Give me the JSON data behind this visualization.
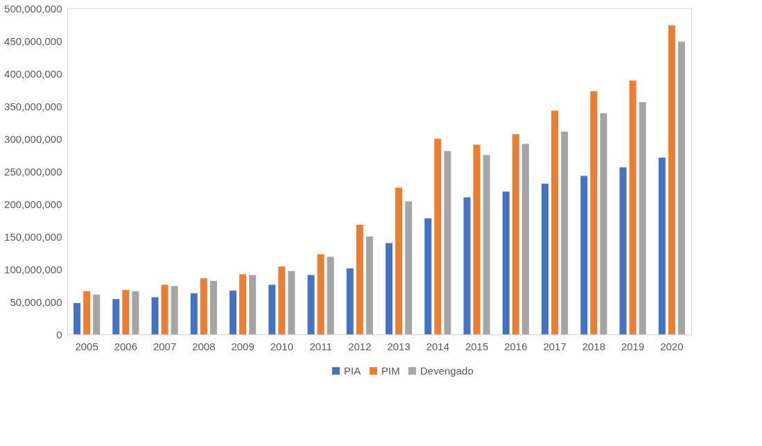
{
  "chart_data": {
    "type": "bar",
    "categories": [
      "2005",
      "2006",
      "2007",
      "2008",
      "2009",
      "2010",
      "2011",
      "2012",
      "2013",
      "2014",
      "2015",
      "2016",
      "2017",
      "2018",
      "2019",
      "2020"
    ],
    "series": [
      {
        "name": "PIA",
        "color": "#4472c4",
        "values": [
          48000000,
          54000000,
          57000000,
          63000000,
          67000000,
          76000000,
          91000000,
          101000000,
          140000000,
          178000000,
          210000000,
          219000000,
          231000000,
          243000000,
          256000000,
          271000000
        ]
      },
      {
        "name": "PIM",
        "color": "#ed7d31",
        "values": [
          66000000,
          68000000,
          76000000,
          86000000,
          92000000,
          104000000,
          123000000,
          168000000,
          225000000,
          300000000,
          291000000,
          307000000,
          343000000,
          373000000,
          389000000,
          474000000
        ]
      },
      {
        "name": "Devengado",
        "color": "#a5a5a5",
        "values": [
          61000000,
          66000000,
          74000000,
          82000000,
          91000000,
          97000000,
          119000000,
          150000000,
          204000000,
          281000000,
          275000000,
          292000000,
          311000000,
          339000000,
          356000000,
          449000000
        ]
      }
    ],
    "ylim": [
      0,
      500000000
    ],
    "yticks": [
      0,
      {
        "value": 50000000,
        "label": "50,000,000"
      },
      {
        "value": 100000000,
        "label": "100,000,000"
      },
      {
        "value": 150000000,
        "label": "150,000,000"
      },
      {
        "value": 200000000,
        "label": "200,000,000"
      },
      {
        "value": 250000000,
        "label": "250,000,000"
      },
      {
        "value": 300000000,
        "label": "300,000,000"
      },
      {
        "value": 350000000,
        "label": "350,000,000"
      },
      {
        "value": 400000000,
        "label": "400,000,000"
      },
      {
        "value": 450000000,
        "label": "450,000,000"
      },
      {
        "value": 500000000,
        "label": "500,000,000"
      }
    ],
    "grid": false,
    "legend": "bottom"
  }
}
